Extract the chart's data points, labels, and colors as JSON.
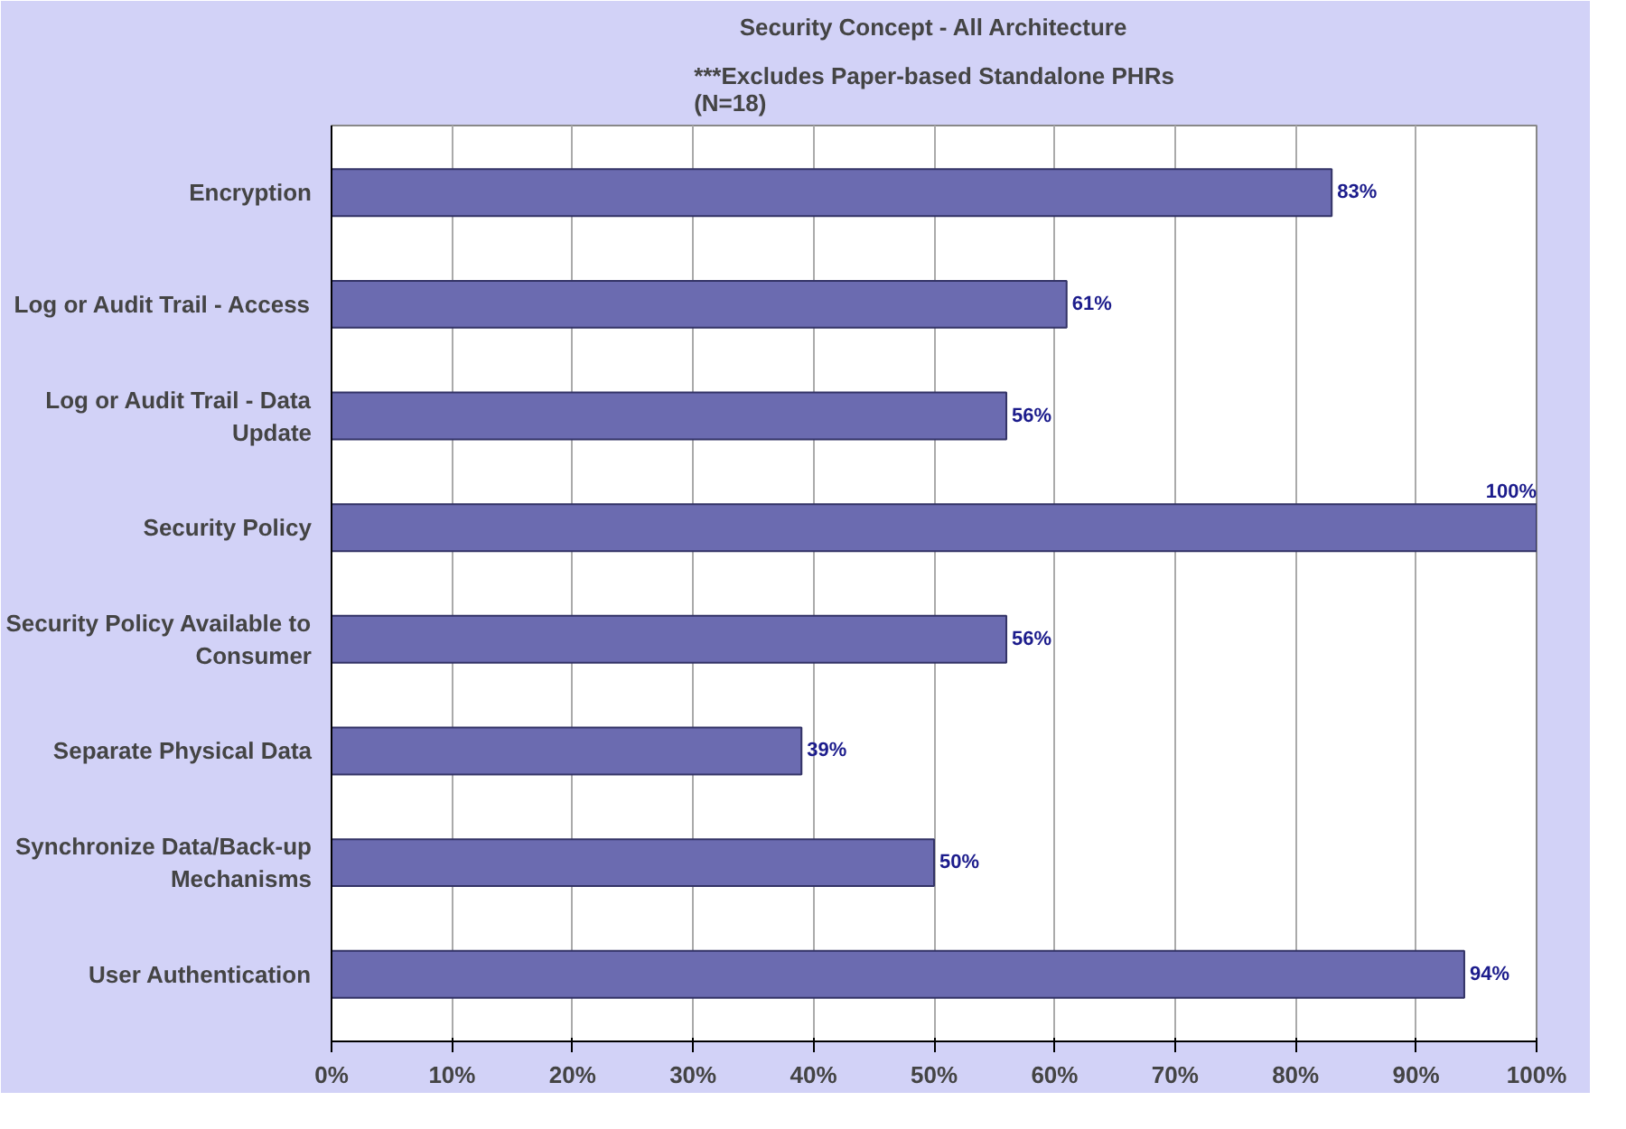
{
  "chart_data": {
    "type": "bar",
    "orientation": "horizontal",
    "title": "Security Concept - All Architecture",
    "subtitle": "***Excludes Paper-based Standalone PHRs\n(N=18)",
    "categories": [
      "Encryption",
      "Log or Audit Trail - Access",
      "Log or Audit Trail - Data Update",
      "Security Policy",
      "Security Policy Available to Consumer",
      "Separate Physical Data",
      "Synchronize Data/Back-up Mechanisms",
      "User Authentication"
    ],
    "values": [
      83,
      61,
      56,
      100,
      56,
      39,
      50,
      94
    ],
    "value_labels": [
      "83%",
      "61%",
      "56%",
      "100%",
      "56%",
      "39%",
      "50%",
      "94%"
    ],
    "color": "#6b6bb0",
    "xlim": [
      0,
      100
    ],
    "xticks": [
      {
        "value": 0,
        "label": "0%"
      },
      {
        "value": 10,
        "label": "10%"
      },
      {
        "value": 20,
        "label": "20%"
      },
      {
        "value": 30,
        "label": "30%"
      },
      {
        "value": 40,
        "label": "40%"
      },
      {
        "value": 50,
        "label": "50%"
      },
      {
        "value": 60,
        "label": "60%"
      },
      {
        "value": 70,
        "label": "70%"
      },
      {
        "value": 80,
        "label": "80%"
      },
      {
        "value": 90,
        "label": "90%"
      },
      {
        "value": 100,
        "label": "100%"
      }
    ],
    "grid": "x"
  }
}
